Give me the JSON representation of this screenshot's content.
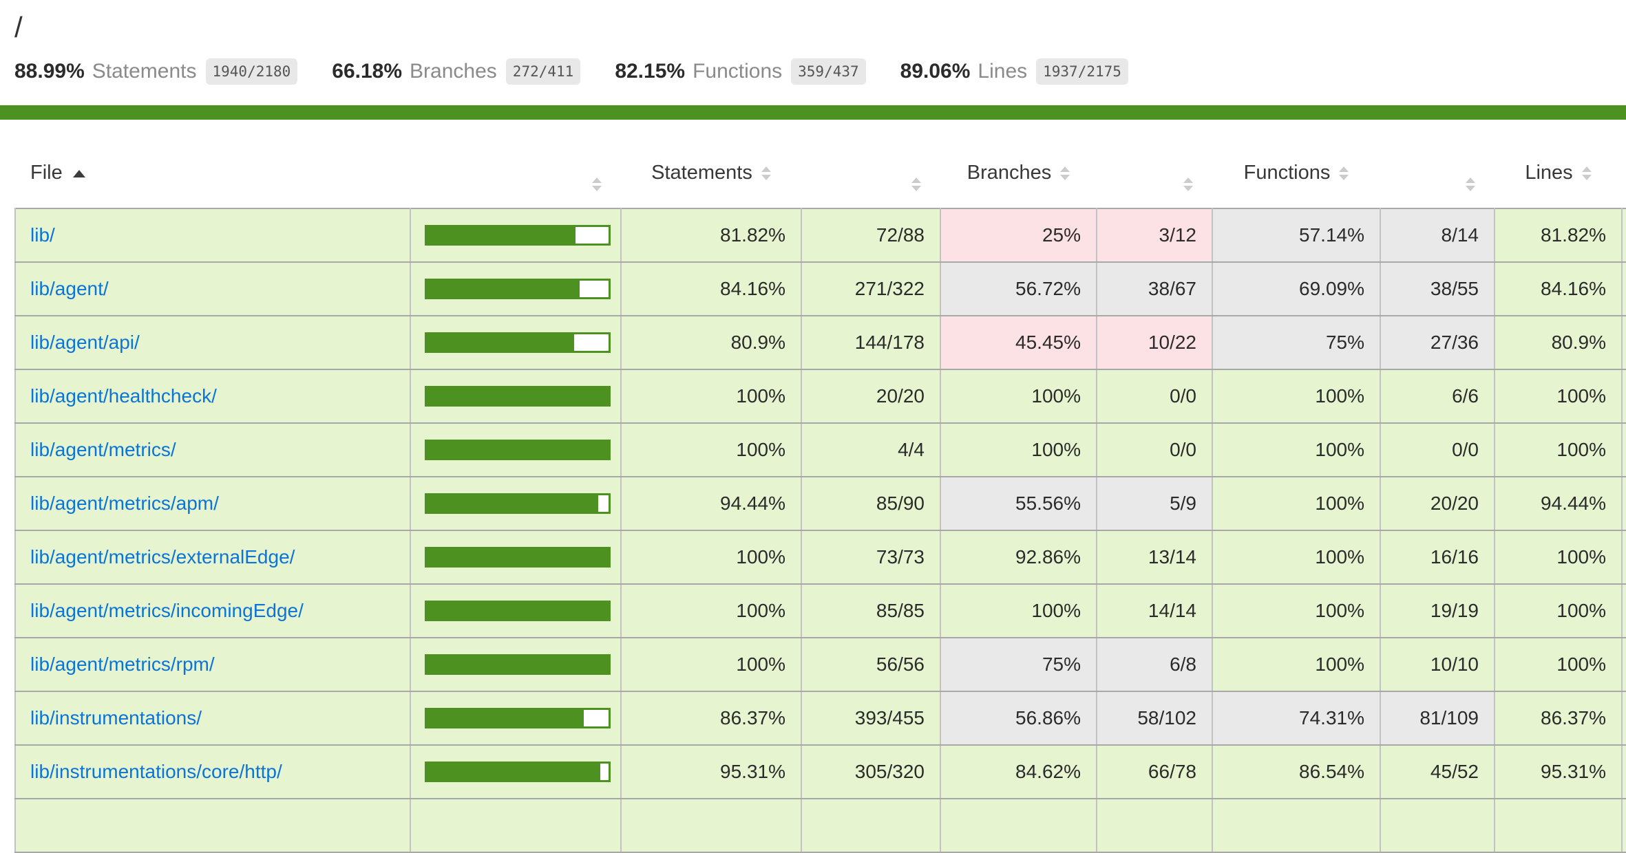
{
  "header": {
    "title": "/"
  },
  "summary": {
    "metrics": [
      {
        "pct": "88.99%",
        "label": "Statements",
        "fraction": "1940/2180"
      },
      {
        "pct": "66.18%",
        "label": "Branches",
        "fraction": "272/411"
      },
      {
        "pct": "82.15%",
        "label": "Functions",
        "fraction": "359/437"
      },
      {
        "pct": "89.06%",
        "label": "Lines",
        "fraction": "1937/2175"
      }
    ]
  },
  "colors": {
    "high_bg": "#e6f5d0",
    "medium_bg": "#e9e9e9",
    "low_bg": "#fce1e5",
    "bar_green": "#4d9221",
    "status_line_green": "#4d9221",
    "link_blue": "#0a74d9"
  },
  "table": {
    "columns": [
      "File",
      "Statements",
      "Branches",
      "Functions",
      "Lines"
    ],
    "sort": {
      "column": "File",
      "direction": "ascending"
    },
    "rows": [
      {
        "file": "lib/",
        "file_level": "high",
        "bar_pct": 81.82,
        "statements_pct": "81.82%",
        "statements_level": "high",
        "statements_frac": "72/88",
        "branches_pct": "25%",
        "branches_level": "low",
        "branches_frac": "3/12",
        "functions_pct": "57.14%",
        "functions_level": "medium",
        "functions_frac": "8/14",
        "lines_pct": "81.82%",
        "lines_level": "high"
      },
      {
        "file": "lib/agent/",
        "file_level": "high",
        "bar_pct": 84.16,
        "statements_pct": "84.16%",
        "statements_level": "high",
        "statements_frac": "271/322",
        "branches_pct": "56.72%",
        "branches_level": "medium",
        "branches_frac": "38/67",
        "functions_pct": "69.09%",
        "functions_level": "medium",
        "functions_frac": "38/55",
        "lines_pct": "84.16%",
        "lines_level": "high"
      },
      {
        "file": "lib/agent/api/",
        "file_level": "high",
        "bar_pct": 80.9,
        "statements_pct": "80.9%",
        "statements_level": "high",
        "statements_frac": "144/178",
        "branches_pct": "45.45%",
        "branches_level": "low",
        "branches_frac": "10/22",
        "functions_pct": "75%",
        "functions_level": "medium",
        "functions_frac": "27/36",
        "lines_pct": "80.9%",
        "lines_level": "high"
      },
      {
        "file": "lib/agent/healthcheck/",
        "file_level": "high",
        "bar_pct": 100,
        "statements_pct": "100%",
        "statements_level": "high",
        "statements_frac": "20/20",
        "branches_pct": "100%",
        "branches_level": "high",
        "branches_frac": "0/0",
        "functions_pct": "100%",
        "functions_level": "high",
        "functions_frac": "6/6",
        "lines_pct": "100%",
        "lines_level": "high"
      },
      {
        "file": "lib/agent/metrics/",
        "file_level": "high",
        "bar_pct": 100,
        "statements_pct": "100%",
        "statements_level": "high",
        "statements_frac": "4/4",
        "branches_pct": "100%",
        "branches_level": "high",
        "branches_frac": "0/0",
        "functions_pct": "100%",
        "functions_level": "high",
        "functions_frac": "0/0",
        "lines_pct": "100%",
        "lines_level": "high"
      },
      {
        "file": "lib/agent/metrics/apm/",
        "file_level": "high",
        "bar_pct": 94.44,
        "statements_pct": "94.44%",
        "statements_level": "high",
        "statements_frac": "85/90",
        "branches_pct": "55.56%",
        "branches_level": "medium",
        "branches_frac": "5/9",
        "functions_pct": "100%",
        "functions_level": "high",
        "functions_frac": "20/20",
        "lines_pct": "94.44%",
        "lines_level": "high"
      },
      {
        "file": "lib/agent/metrics/externalEdge/",
        "file_level": "high",
        "bar_pct": 100,
        "statements_pct": "100%",
        "statements_level": "high",
        "statements_frac": "73/73",
        "branches_pct": "92.86%",
        "branches_level": "high",
        "branches_frac": "13/14",
        "functions_pct": "100%",
        "functions_level": "high",
        "functions_frac": "16/16",
        "lines_pct": "100%",
        "lines_level": "high"
      },
      {
        "file": "lib/agent/metrics/incomingEdge/",
        "file_level": "high",
        "bar_pct": 100,
        "statements_pct": "100%",
        "statements_level": "high",
        "statements_frac": "85/85",
        "branches_pct": "100%",
        "branches_level": "high",
        "branches_frac": "14/14",
        "functions_pct": "100%",
        "functions_level": "high",
        "functions_frac": "19/19",
        "lines_pct": "100%",
        "lines_level": "high"
      },
      {
        "file": "lib/agent/metrics/rpm/",
        "file_level": "high",
        "bar_pct": 100,
        "statements_pct": "100%",
        "statements_level": "high",
        "statements_frac": "56/56",
        "branches_pct": "75%",
        "branches_level": "medium",
        "branches_frac": "6/8",
        "functions_pct": "100%",
        "functions_level": "high",
        "functions_frac": "10/10",
        "lines_pct": "100%",
        "lines_level": "high"
      },
      {
        "file": "lib/instrumentations/",
        "file_level": "high",
        "bar_pct": 86.37,
        "statements_pct": "86.37%",
        "statements_level": "high",
        "statements_frac": "393/455",
        "branches_pct": "56.86%",
        "branches_level": "medium",
        "branches_frac": "58/102",
        "functions_pct": "74.31%",
        "functions_level": "medium",
        "functions_frac": "81/109",
        "lines_pct": "86.37%",
        "lines_level": "high"
      },
      {
        "file": "lib/instrumentations/core/http/",
        "file_level": "high",
        "bar_pct": 95.31,
        "statements_pct": "95.31%",
        "statements_level": "high",
        "statements_frac": "305/320",
        "branches_pct": "84.62%",
        "branches_level": "high",
        "branches_frac": "66/78",
        "functions_pct": "86.54%",
        "functions_level": "high",
        "functions_frac": "45/52",
        "lines_pct": "95.31%",
        "lines_level": "high"
      },
      {
        "file": "",
        "file_level": "high",
        "bar_pct": null,
        "partial": true,
        "statements_pct": "",
        "statements_level": "high",
        "statements_frac": "",
        "branches_pct": "",
        "branches_level": "high",
        "branches_frac": "",
        "functions_pct": "",
        "functions_level": "high",
        "functions_frac": "",
        "lines_pct": "",
        "lines_level": "high"
      }
    ]
  }
}
